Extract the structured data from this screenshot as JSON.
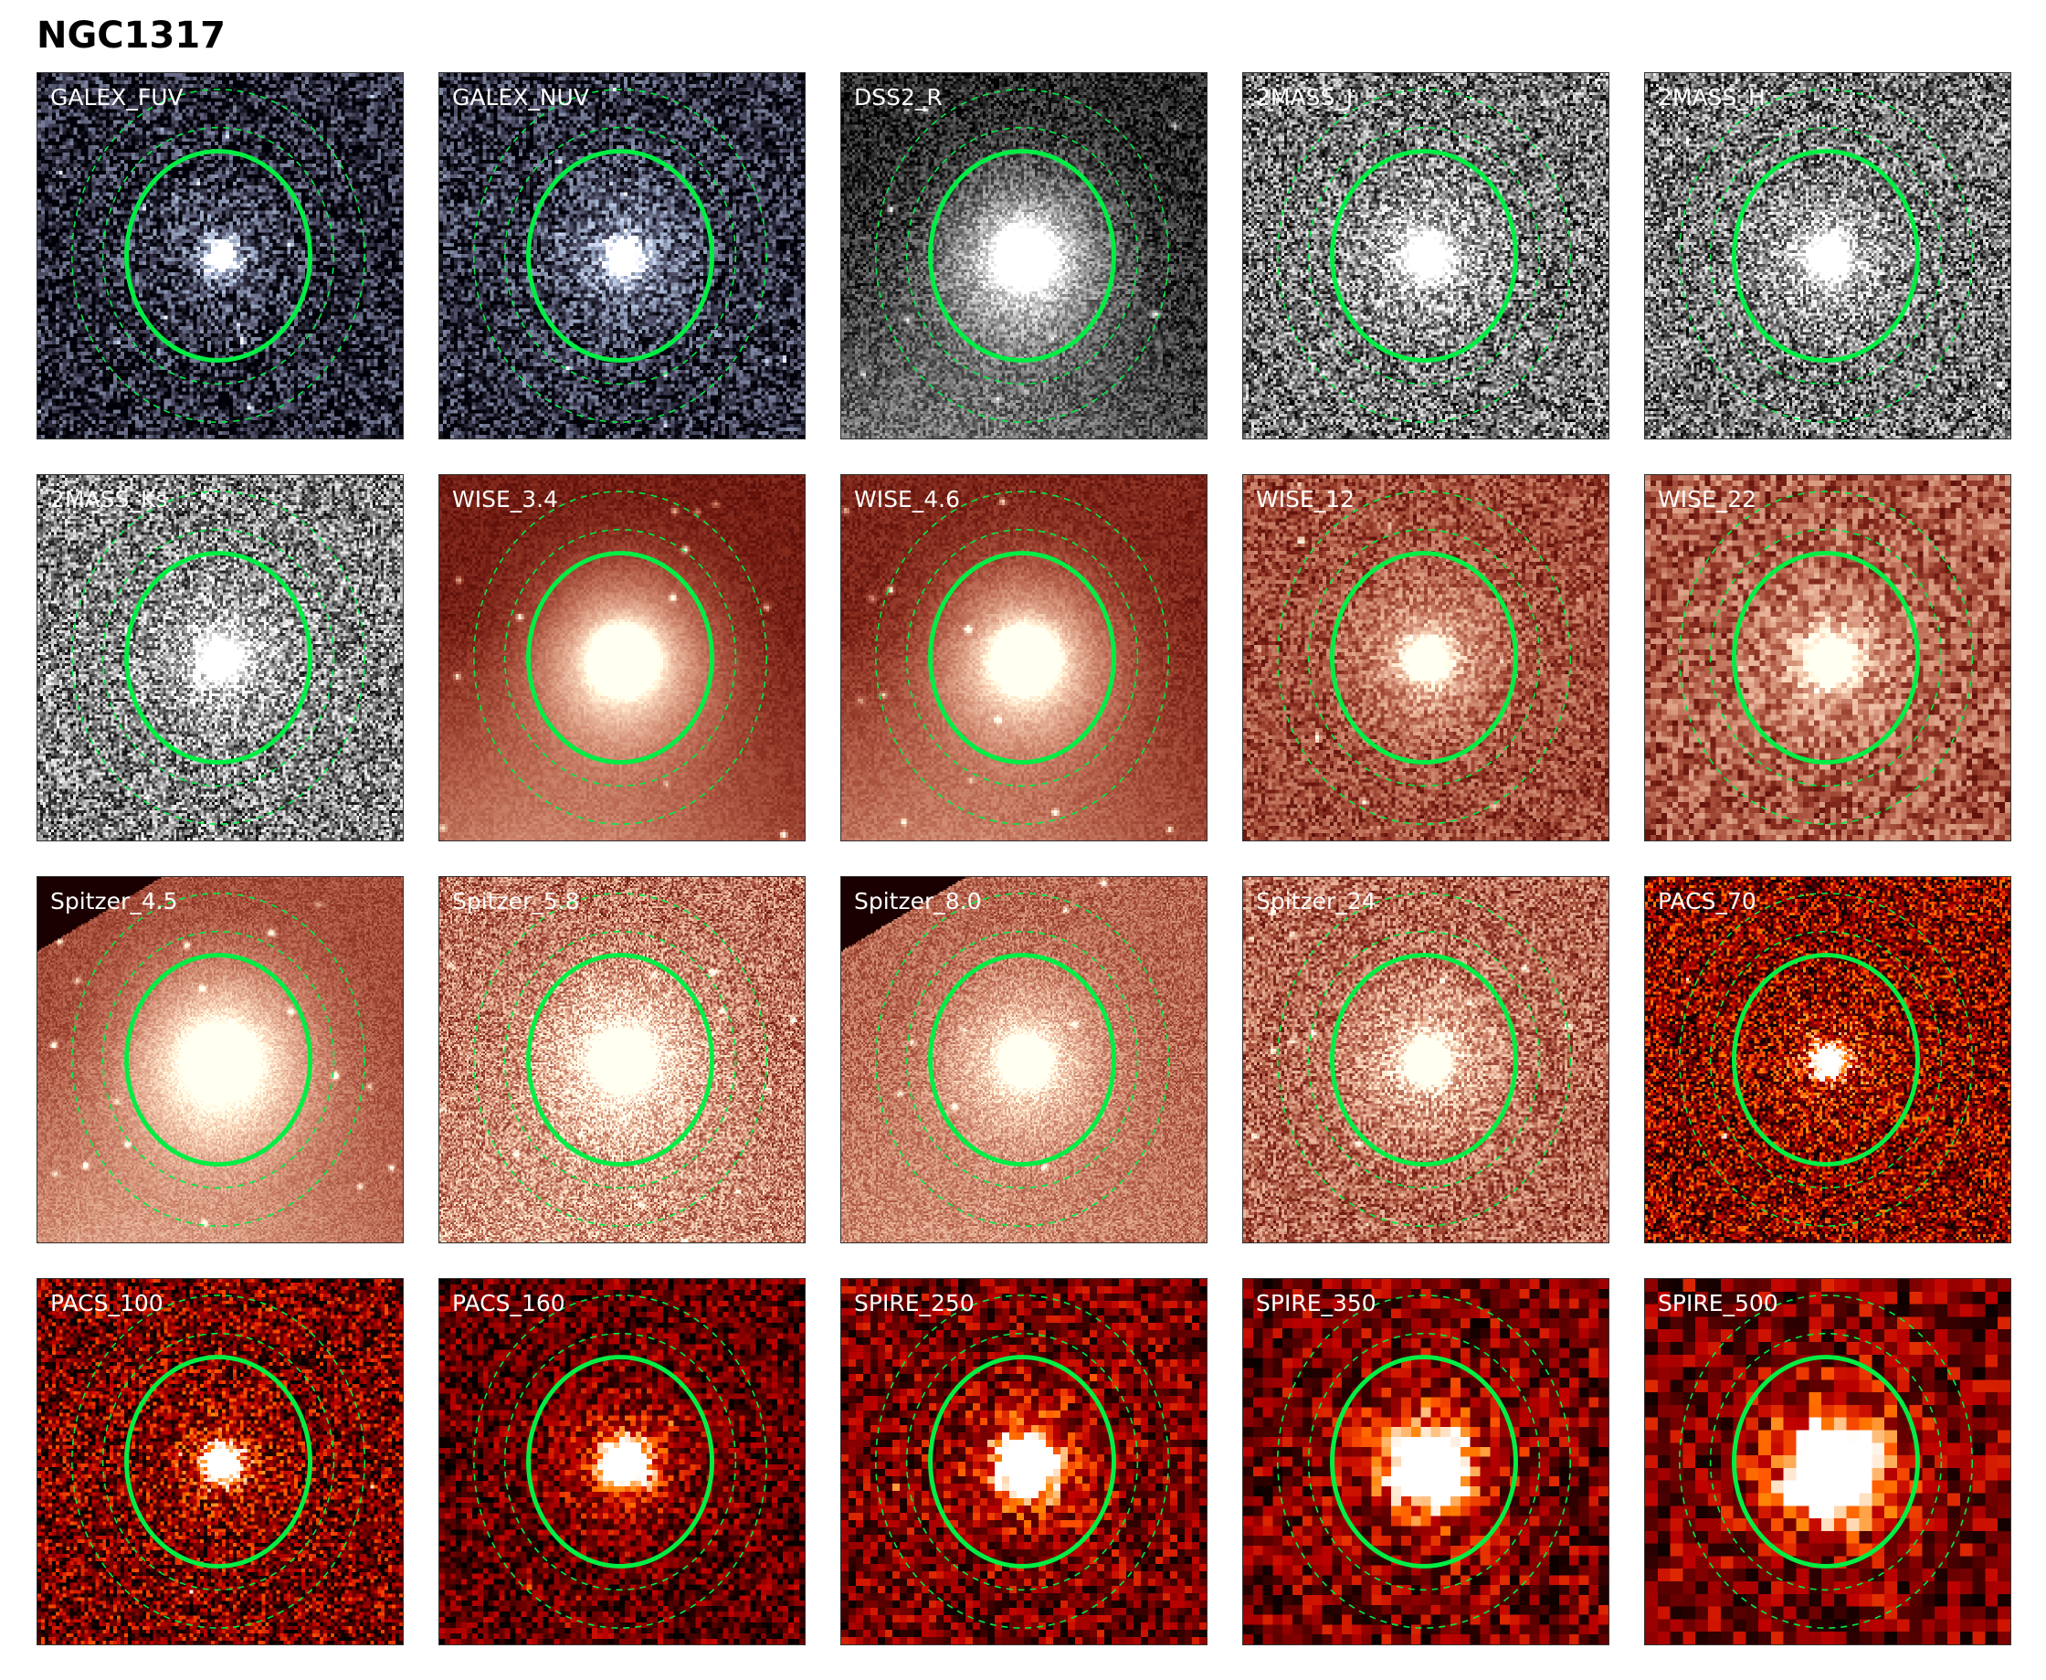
{
  "title": "NGC1317",
  "aperture_color": "#00ee44",
  "panels": [
    {
      "label": "GALEX_FUV",
      "colormap": "bone"
    },
    {
      "label": "GALEX_NUV",
      "colormap": "bone"
    },
    {
      "label": "DSS2_R",
      "colormap": "gray"
    },
    {
      "label": "2MASS_J",
      "colormap": "gray"
    },
    {
      "label": "2MASS_H",
      "colormap": "gray"
    },
    {
      "label": "2MASS_Ks",
      "colormap": "gray"
    },
    {
      "label": "WISE_3.4",
      "colormap": "pink"
    },
    {
      "label": "WISE_4.6",
      "colormap": "pink"
    },
    {
      "label": "WISE_12",
      "colormap": "pink"
    },
    {
      "label": "WISE_22",
      "colormap": "pink"
    },
    {
      "label": "Spitzer_4.5",
      "colormap": "pink"
    },
    {
      "label": "Spitzer_5.8",
      "colormap": "pink"
    },
    {
      "label": "Spitzer_8.0",
      "colormap": "pink"
    },
    {
      "label": "Spitzer_24",
      "colormap": "pink"
    },
    {
      "label": "PACS_70",
      "colormap": "gist_heat"
    },
    {
      "label": "PACS_100",
      "colormap": "gist_heat"
    },
    {
      "label": "PACS_160",
      "colormap": "gist_heat"
    },
    {
      "label": "SPIRE_250",
      "colormap": "gist_heat"
    },
    {
      "label": "SPIRE_350",
      "colormap": "gist_heat"
    },
    {
      "label": "SPIRE_500",
      "colormap": "gist_heat"
    }
  ]
}
